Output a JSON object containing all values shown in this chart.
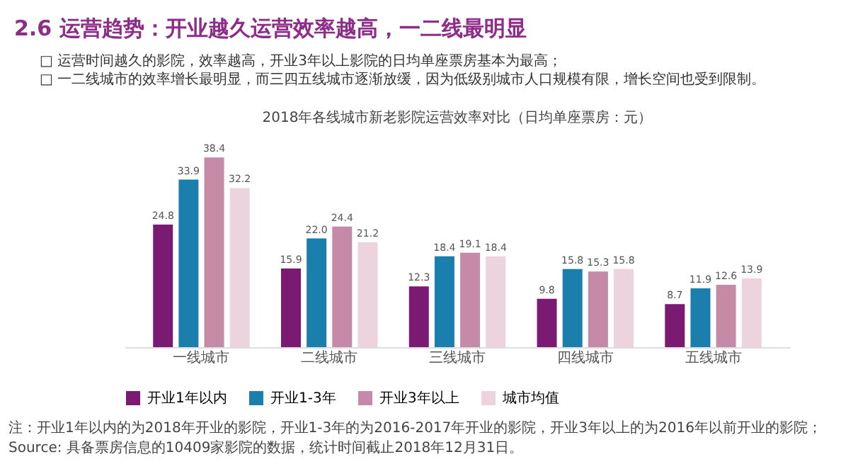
{
  "chart_data": {
    "type": "bar",
    "title": "2.6 运营趋势：开业越久运营效率越高，一二线最明显",
    "subtitle": "2018年各线城市新老影院运营效率对比（日均单座票房：元）",
    "annotations": [
      "□ 运营时间越久的影院，效率越高，开业3年以上影院的日均单座票房基本为最高；",
      "□ 一二线城市的效率增长最明显，而三四五线城市逐渐放缓，因为低级别城市人口规模有限，增长空间也受到限制。",
      "注：开业1年以内的为2018年开业的影院，开业1-3年的为2016-2017年开业的影院，开业3年以上的为2016年以前开业的影院；",
      "Source: 具备票房信息的10409家影院的数据，统计时间截止2018年12月31日。"
    ],
    "categories": [
      "一线城市",
      "二线城市",
      "三线城市",
      "四线城市",
      "五线城市"
    ],
    "series": [
      {
        "name": "开业1年以内",
        "color": "#7b1a73",
        "values": [
          24.8,
          15.9,
          12.3,
          9.8,
          8.7
        ],
        "value_labels": [
          "24.8",
          "15.9",
          "12.3",
          "9.8",
          "8.7"
        ]
      },
      {
        "name": "开业1-3年",
        "color": "#1a7fad",
        "values": [
          33.9,
          22.0,
          18.4,
          15.8,
          11.9
        ],
        "value_labels": [
          "33.9",
          "22.0",
          "18.4",
          "15.8",
          "11.9"
        ]
      },
      {
        "name": "开业3年以上",
        "color": "#c48aa8",
        "values": [
          38.4,
          24.4,
          19.1,
          15.3,
          12.6
        ],
        "value_labels": [
          "38.4",
          "24.4",
          "19.1",
          "15.3",
          "12.6"
        ]
      },
      {
        "name": "城市均值",
        "color": "#ecd3dd",
        "values": [
          32.2,
          21.2,
          18.4,
          15.8,
          13.9
        ],
        "value_labels": [
          "32.2",
          "21.2",
          "18.4",
          "15.8",
          "13.9"
        ]
      }
    ],
    "grid": false,
    "legend": "bottom"
  }
}
